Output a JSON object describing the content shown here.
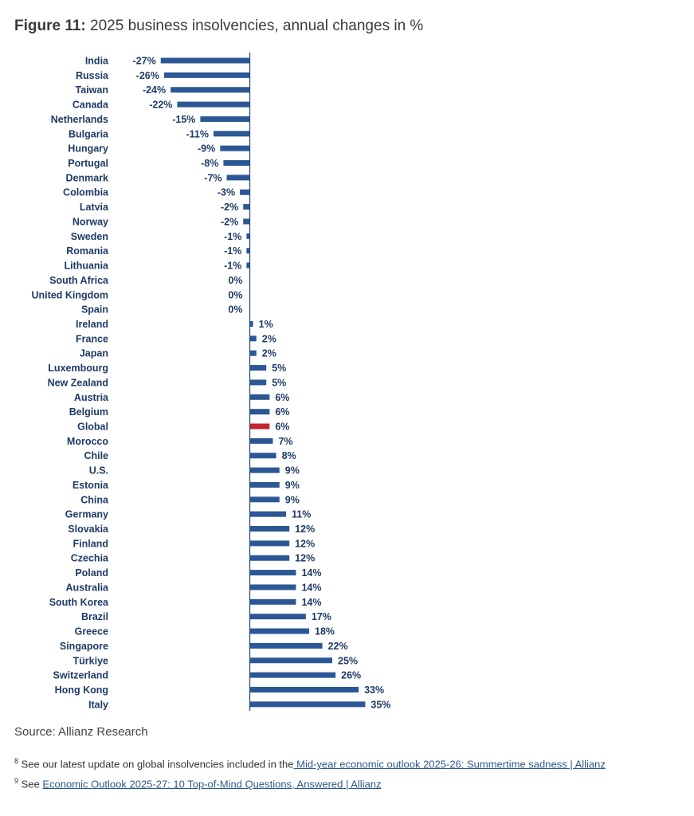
{
  "title": {
    "prefix": "Figure 11:",
    "text": " 2025 business insolvencies, annual changes in %"
  },
  "chart_data": {
    "type": "bar",
    "orientation": "horizontal",
    "title": "2025 business insolvencies, annual changes in %",
    "categories": [
      "India",
      "Russia",
      "Taiwan",
      "Canada",
      "Netherlands",
      "Bulgaria",
      "Hungary",
      "Portugal",
      "Denmark",
      "Colombia",
      "Latvia",
      "Norway",
      "Sweden",
      "Romania",
      "Lithuania",
      "South Africa",
      "United Kingdom",
      "Spain",
      "Ireland",
      "France",
      "Japan",
      "Luxembourg",
      "New Zealand",
      "Austria",
      "Belgium",
      "Global",
      "Morocco",
      "Chile",
      "U.S.",
      "Estonia",
      "China",
      "Germany",
      "Slovakia",
      "Finland",
      "Czechia",
      "Poland",
      "Australia",
      "South Korea",
      "Brazil",
      "Greece",
      "Singapore",
      "Türkiye",
      "Switzerland",
      "Hong Kong",
      "Italy"
    ],
    "values": [
      -27,
      -26,
      -24,
      -22,
      -15,
      -11,
      -9,
      -8,
      -7,
      -3,
      -2,
      -2,
      -1,
      -1,
      -1,
      0,
      0,
      0,
      1,
      2,
      2,
      5,
      5,
      6,
      6,
      6,
      7,
      8,
      9,
      9,
      9,
      11,
      12,
      12,
      12,
      14,
      14,
      14,
      17,
      18,
      22,
      25,
      26,
      33,
      35
    ],
    "labels": [
      "-27%",
      "-26%",
      "-24%",
      "-22%",
      "-15%",
      "-11%",
      "-9%",
      "-8%",
      "-7%",
      "-3%",
      "-2%",
      "-2%",
      "-1%",
      "-1%",
      "-1%",
      "0%",
      "0%",
      "0%",
      "1%",
      "2%",
      "2%",
      "5%",
      "5%",
      "6%",
      "6%",
      "6%",
      "7%",
      "8%",
      "9%",
      "9%",
      "9%",
      "11%",
      "12%",
      "12%",
      "12%",
      "14%",
      "14%",
      "14%",
      "17%",
      "18%",
      "22%",
      "25%",
      "26%",
      "33%",
      "35%"
    ],
    "highlight": "Global",
    "colors": {
      "bar": "#2b5895",
      "highlight": "#c3262e",
      "text": "#1e3a66"
    },
    "xlabel": "",
    "ylabel": "",
    "grid": false
  },
  "source": "Source: Allianz Research",
  "footnotes": [
    {
      "num": "8",
      "text": "See our latest update on global insolvencies included in the",
      "link": " Mid-year economic outlook 2025-26: Summertime sadness | Allianz"
    },
    {
      "num": "9",
      "text": "See ",
      "link": "Economic Outlook 2025-27: 10 Top-of-Mind Questions, Answered | Allianz"
    }
  ]
}
